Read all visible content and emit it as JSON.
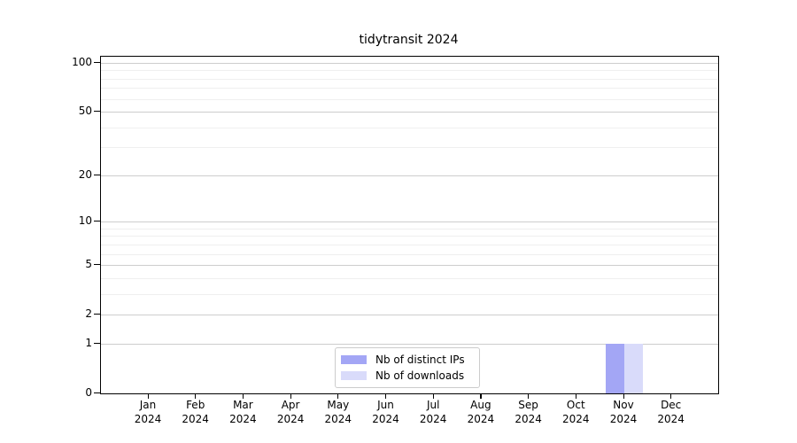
{
  "chart_data": {
    "type": "bar",
    "title": "tidytransit 2024",
    "categories": [
      "Jan 2024",
      "Feb 2024",
      "Mar 2024",
      "Apr 2024",
      "May 2024",
      "Jun 2024",
      "Jul 2024",
      "Aug 2024",
      "Sep 2024",
      "Oct 2024",
      "Nov 2024",
      "Dec 2024"
    ],
    "series": [
      {
        "name": "Nb of distinct IPs",
        "color": "#a3a6f5",
        "values": [
          0,
          0,
          0,
          0,
          0,
          0,
          0,
          0,
          0,
          0,
          1,
          0
        ]
      },
      {
        "name": "Nb of downloads",
        "color": "#d9dbfa",
        "values": [
          0,
          0,
          0,
          0,
          0,
          0,
          0,
          0,
          0,
          0,
          1,
          0
        ]
      }
    ],
    "xlabel": "",
    "ylabel": "",
    "y_scale": "log1p",
    "ylim": [
      0,
      100
    ],
    "y_ticks": [
      0,
      1,
      2,
      5,
      10,
      20,
      50,
      100
    ],
    "y_minor_ticks": [
      3,
      4,
      6,
      7,
      8,
      9,
      30,
      40,
      60,
      70,
      80,
      90
    ],
    "grid": true,
    "legend": {
      "position": "lower-center-inside",
      "entries": [
        "Nb of distinct IPs",
        "Nb of downloads"
      ]
    }
  }
}
